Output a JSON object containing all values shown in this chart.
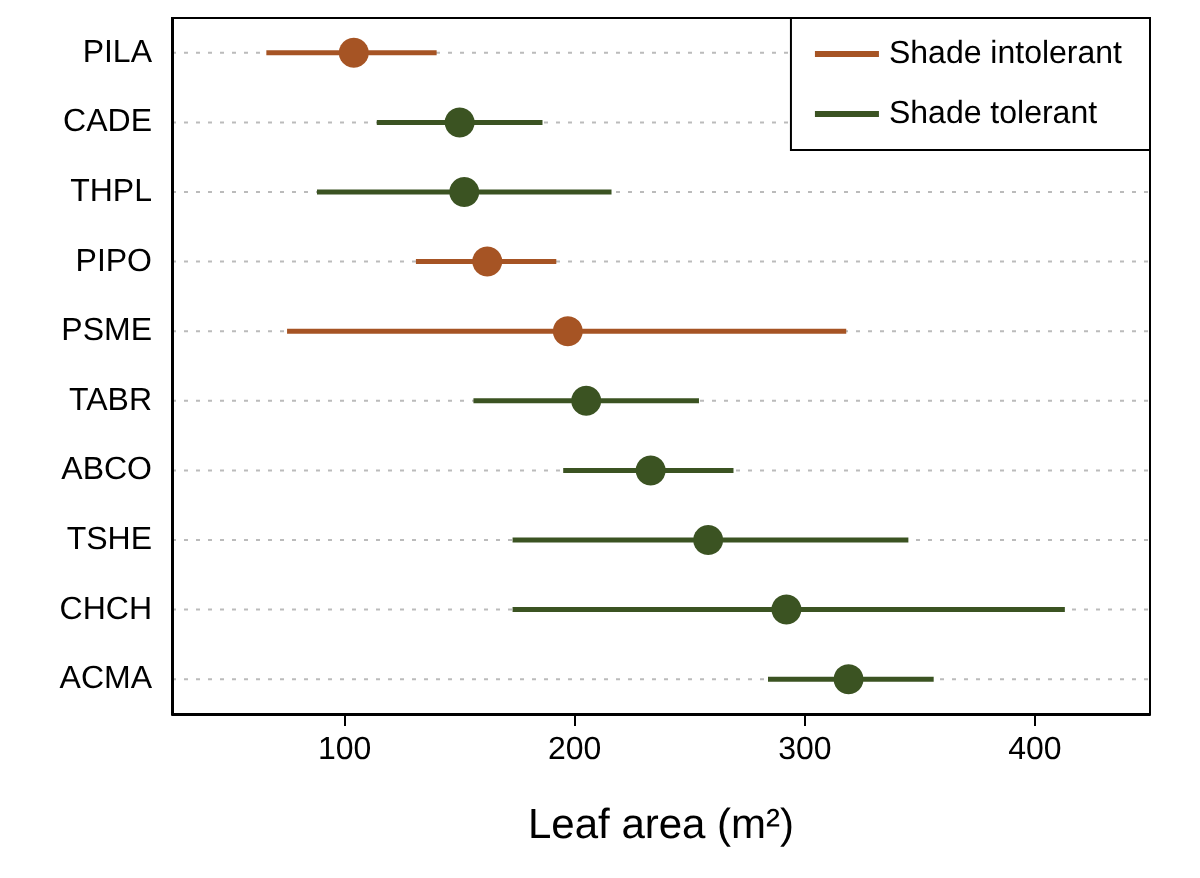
{
  "chart_data": {
    "type": "scatter",
    "orientation": "horizontal",
    "xlabel": "Leaf area (m²)",
    "categories": [
      "PILA",
      "CADE",
      "THPL",
      "PIPO",
      "PSME",
      "TABR",
      "ABCO",
      "TSHE",
      "CHCH",
      "ACMA"
    ],
    "series": [
      {
        "name": "Shade intolerant",
        "color": "#a65424",
        "values": [
          104,
          null,
          null,
          162,
          197,
          null,
          null,
          null,
          null,
          null
        ],
        "errors": [
          [
            66,
            140
          ],
          null,
          null,
          [
            131,
            192
          ],
          [
            75,
            318
          ],
          null,
          null,
          null,
          null,
          null
        ]
      },
      {
        "name": "Shade tolerant",
        "color": "#3b5322",
        "values": [
          null,
          150,
          152,
          null,
          null,
          205,
          233,
          258,
          292,
          319
        ],
        "errors": [
          null,
          [
            114,
            186
          ],
          [
            88,
            216
          ],
          null,
          null,
          [
            156,
            254
          ],
          [
            195,
            269
          ],
          [
            173,
            345
          ],
          [
            173,
            413
          ],
          [
            284,
            356
          ]
        ]
      }
    ],
    "xlim": [
      25,
      450
    ],
    "xticks": [
      100,
      200,
      300,
      400
    ],
    "grid": "y",
    "legend": "top right",
    "marker": "circle"
  }
}
